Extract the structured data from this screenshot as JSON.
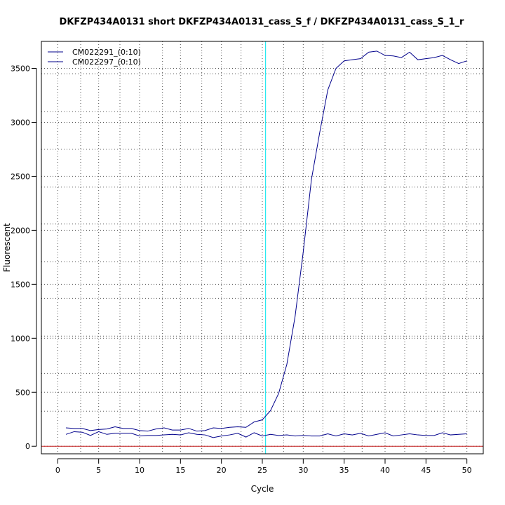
{
  "chart_data": {
    "type": "line",
    "title": "DKFZP434A0131 short DKFZP434A0131_cass_S_f / DKFZP434A0131_cass_S_1_r",
    "xlabel": "Cycle",
    "ylabel": "Fluorescent",
    "xlim": [
      -2,
      52
    ],
    "ylim": [
      -70,
      3750
    ],
    "xticks": [
      0,
      5,
      10,
      15,
      20,
      25,
      30,
      35,
      40,
      45,
      50
    ],
    "yticks": [
      0,
      500,
      1000,
      1500,
      2000,
      2500,
      3000,
      3500
    ],
    "x_minor_grid": [
      2.8,
      7.6,
      12.8,
      17.6,
      22.4,
      27.6,
      32.4,
      37.2,
      42.4,
      47.2
    ],
    "y_minor_grid": [
      325,
      675,
      1020,
      1370,
      1710,
      2060,
      2400,
      2750,
      3100,
      3450
    ],
    "legend_position": "top-left",
    "grid": true,
    "threshold_cycle": 25.4,
    "baseline": 0,
    "series": [
      {
        "name": "CM022291_(0:10)",
        "color": "#00008b",
        "x": [
          1,
          2,
          3,
          4,
          5,
          6,
          7,
          8,
          9,
          10,
          11,
          12,
          13,
          14,
          15,
          16,
          17,
          18,
          19,
          20,
          21,
          22,
          23,
          24,
          25,
          26,
          27,
          28,
          29,
          30,
          31,
          32,
          33,
          34,
          35,
          36,
          37,
          38,
          39,
          40,
          41,
          42,
          43,
          44,
          45,
          46,
          47,
          48,
          49,
          50
        ],
        "y": [
          170,
          165,
          165,
          145,
          155,
          160,
          180,
          165,
          165,
          145,
          140,
          160,
          170,
          150,
          150,
          165,
          140,
          145,
          170,
          165,
          175,
          180,
          175,
          225,
          245,
          330,
          490,
          760,
          1200,
          1800,
          2470,
          2900,
          3300,
          3500,
          3570,
          3580,
          3590,
          3650,
          3660,
          3620,
          3615,
          3600,
          3650,
          3580,
          3590,
          3600,
          3620,
          3580,
          3545,
          3570
        ]
      },
      {
        "name": "CM022297_(0:10)",
        "color": "#00008b",
        "x": [
          1,
          2,
          3,
          4,
          5,
          6,
          7,
          8,
          9,
          10,
          11,
          12,
          13,
          14,
          15,
          16,
          17,
          18,
          19,
          20,
          21,
          22,
          23,
          24,
          25,
          26,
          27,
          28,
          29,
          30,
          31,
          32,
          33,
          34,
          35,
          36,
          37,
          38,
          39,
          40,
          41,
          42,
          43,
          44,
          45,
          46,
          47,
          48,
          49,
          50
        ],
        "y": [
          110,
          135,
          130,
          100,
          135,
          110,
          120,
          120,
          120,
          95,
          100,
          100,
          105,
          110,
          105,
          125,
          110,
          105,
          80,
          95,
          105,
          120,
          85,
          125,
          95,
          110,
          100,
          105,
          95,
          100,
          95,
          95,
          115,
          95,
          115,
          105,
          120,
          95,
          110,
          125,
          95,
          105,
          115,
          105,
          100,
          100,
          125,
          105,
          110,
          115
        ]
      }
    ]
  }
}
